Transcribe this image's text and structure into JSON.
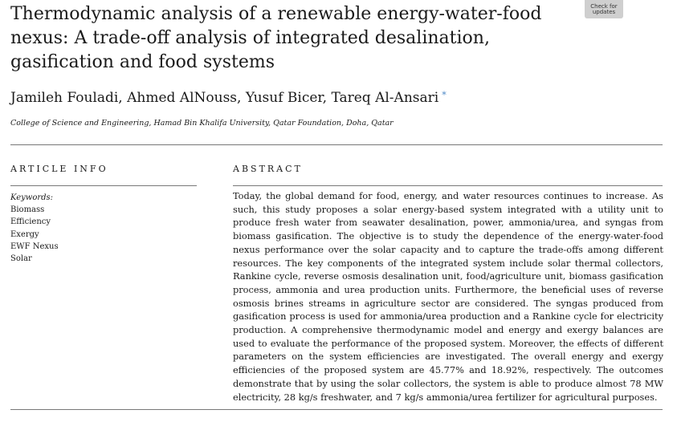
{
  "paper": {
    "title": "Thermodynamic analysis of a renewable energy-water-food nexus: A trade-off analysis of integrated desalination, gasification and food systems",
    "badge": {
      "line1": "Check for",
      "line2": "updates"
    },
    "authors": "Jamileh Fouladi, Ahmed AlNouss, Yusuf Bicer, Tareq Al-Ansari",
    "corresponding_mark": "*",
    "affiliation": "College of Science and Engineering, Hamad Bin Khalifa University, Qatar Foundation, Doha, Qatar"
  },
  "article_info": {
    "heading": "ARTICLE INFO",
    "keywords_label": "Keywords:",
    "keywords": [
      "Biomass",
      "Efficiency",
      "Exergy",
      "EWF Nexus",
      "Solar"
    ]
  },
  "abstract": {
    "heading": "ABSTRACT",
    "text": "Today, the global demand for food, energy, and water resources continues to increase. As such, this study proposes a solar energy-based system integrated with a utility unit to produce fresh water from seawater desalination, power, ammonia/urea, and syngas from biomass gasification. The objective is to study the dependence of the energy-water-food nexus performance over the solar capacity and to capture the trade-offs among different resources. The key components of the integrated system include solar thermal collectors, Rankine cycle, reverse osmosis desalination unit, food/agriculture unit, biomass gasification process, ammonia and urea production units. Furthermore, the beneficial uses of reverse osmosis brines streams in agriculture sector are considered. The syngas produced from gasification process is used for ammonia/urea production and a Rankine cycle for electricity production. A comprehensive thermodynamic model and energy and exergy balances are used to evaluate the performance of the proposed system. Moreover, the effects of different parameters on the system efficiencies are investigated. The overall energy and exergy efficiencies of the proposed system are 45.77% and 18.92%, respectively. The outcomes demonstrate that by using the solar collectors, the system is able to produce almost 78 MW electricity, 28 kg/s freshwater, and 7 kg/s ammonia/urea fertilizer for agricultural purposes."
  }
}
